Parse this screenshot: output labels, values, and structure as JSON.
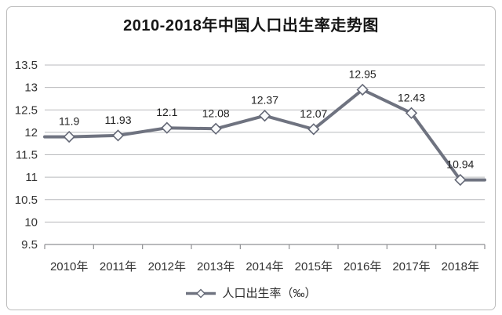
{
  "chart_data": {
    "type": "line",
    "title": "2010-2018年中国人口出生率走势图",
    "categories": [
      "2010年",
      "2011年",
      "2012年",
      "2013年",
      "2014年",
      "2015年",
      "2016年",
      "2017年",
      "2018年"
    ],
    "series": [
      {
        "name": "人口出生率（‰）",
        "values": [
          11.9,
          11.93,
          12.1,
          12.08,
          12.37,
          12.07,
          12.95,
          12.43,
          10.94
        ]
      }
    ],
    "data_labels": [
      "11.9",
      "11.93",
      "12.1",
      "12.08",
      "12.37",
      "12.07",
      "12.95",
      "12.43",
      "10.94"
    ],
    "xlabel": "",
    "ylabel": "",
    "ylim": [
      9.5,
      13.5
    ],
    "ytick_step": 0.5,
    "ytick_labels": [
      "9.5",
      "10",
      "10.5",
      "11",
      "11.5",
      "12",
      "12.5",
      "13",
      "13.5"
    ],
    "grid": true,
    "legend_position": "bottom",
    "legend_label": "人口出生率（‰）",
    "marker": "diamond"
  },
  "colors": {
    "line": "#6f7380",
    "marker_fill": "#fafbfc",
    "marker_stroke": "#646876",
    "gridline": "#b9babd",
    "axis_line": "#8f9093",
    "tick": "#8f9093",
    "data_label_text": "#1f1f1f",
    "axis_text": "#333333",
    "title_text": "#161616",
    "frame_border": "#bcbcbc",
    "background": "#ffffff"
  }
}
